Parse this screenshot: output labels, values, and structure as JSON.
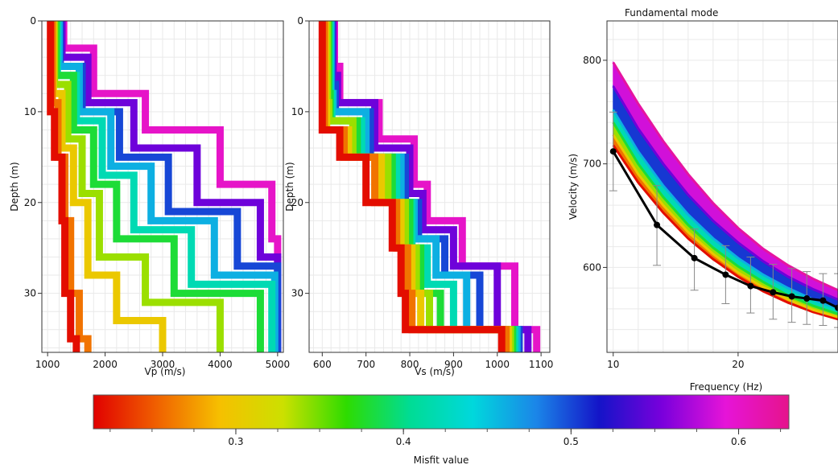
{
  "charts": {
    "vp": {
      "xlabel": "Vp (m/s)",
      "ylabel": "Depth (m)",
      "xticks": [
        1000,
        2000,
        3000,
        4000,
        5000
      ],
      "yticks": [
        0,
        10,
        20,
        30
      ],
      "xlim": [
        900,
        5100
      ],
      "ylim": [
        0,
        36.5
      ]
    },
    "vs": {
      "xlabel": "Vs (m/s)",
      "ylabel": "Depth (m)",
      "xticks": [
        600,
        700,
        800,
        900,
        1000,
        1100
      ],
      "yticks": [
        0,
        10,
        20,
        30
      ],
      "xlim": [
        570,
        1120
      ],
      "ylim": [
        0,
        36.5
      ]
    },
    "dispersion": {
      "title": "Fundamental mode",
      "xlabel": "Frequency (Hz)",
      "ylabel": "Velocity (m/s)",
      "xticks": [
        10,
        20
      ],
      "yticks": [
        600,
        700,
        800
      ],
      "xlim": [
        9.5,
        28
      ],
      "ylim": [
        518,
        838
      ]
    }
  },
  "colorbar": {
    "label": "Misfit value",
    "ticks": [
      "0.3",
      "0.4",
      "0.5",
      "0.6"
    ],
    "tick_values": [
      0.3,
      0.4,
      0.5,
      0.6
    ],
    "range": [
      0.215,
      0.63
    ],
    "colors": [
      "#e10000",
      "#f06000",
      "#f6c000",
      "#cce000",
      "#2edc00",
      "#00dc94",
      "#00d8dc",
      "#1b86e8",
      "#1414c8",
      "#7a00dc",
      "#e614d8",
      "#e6148c"
    ]
  },
  "chart_data": [
    {
      "type": "line",
      "title": "",
      "xlabel": "Vp (m/s)",
      "ylabel": "Depth (m)",
      "xlim": [
        900,
        5100
      ],
      "ylim": [
        36.5,
        0
      ],
      "note_series": "ensemble of inverted velocity profiles coloured by misfit",
      "series": [
        {
          "misfit": 0.22,
          "depth": [
            0,
            10,
            15,
            22,
            30,
            35
          ],
          "values": [
            1050,
            1120,
            1250,
            1300,
            1400,
            1500
          ]
        },
        {
          "misfit": 0.26,
          "depth": [
            0,
            9,
            15,
            22,
            30,
            35
          ],
          "values": [
            1080,
            1180,
            1300,
            1400,
            1550,
            1700
          ]
        },
        {
          "misfit": 0.3,
          "depth": [
            0,
            8,
            14,
            20,
            28,
            33
          ],
          "values": [
            1100,
            1250,
            1450,
            1700,
            2200,
            3000
          ]
        },
        {
          "misfit": 0.34,
          "depth": [
            0,
            7,
            13,
            19,
            26,
            31
          ],
          "values": [
            1120,
            1350,
            1600,
            1900,
            2700,
            4000
          ]
        },
        {
          "misfit": 0.38,
          "depth": [
            0,
            6,
            12,
            18,
            24,
            30
          ],
          "values": [
            1150,
            1450,
            1800,
            2200,
            3200,
            4700
          ]
        },
        {
          "misfit": 0.42,
          "depth": [
            0,
            6,
            11,
            17,
            23,
            29
          ],
          "values": [
            1170,
            1500,
            1950,
            2500,
            3500,
            4900
          ]
        },
        {
          "misfit": 0.46,
          "depth": [
            0,
            5,
            10,
            16,
            22,
            28
          ],
          "values": [
            1200,
            1550,
            2100,
            2800,
            3900,
            4950
          ]
        },
        {
          "misfit": 0.5,
          "depth": [
            0,
            5,
            10,
            15,
            21,
            27
          ],
          "values": [
            1220,
            1600,
            2250,
            3100,
            4300,
            5000
          ]
        },
        {
          "misfit": 0.55,
          "depth": [
            0,
            4,
            9,
            14,
            20,
            26
          ],
          "values": [
            1250,
            1700,
            2500,
            3600,
            4700,
            5000
          ]
        },
        {
          "misfit": 0.6,
          "depth": [
            0,
            3,
            8,
            12,
            18,
            24
          ],
          "values": [
            1280,
            1800,
            2700,
            4000,
            4900,
            5000
          ]
        }
      ]
    },
    {
      "type": "line",
      "title": "",
      "xlabel": "Vs (m/s)",
      "ylabel": "Depth (m)",
      "xlim": [
        570,
        1120
      ],
      "ylim": [
        36.5,
        0
      ],
      "series": [
        {
          "misfit": 0.22,
          "depth": [
            0,
            10,
            12,
            15,
            20,
            25,
            30,
            34
          ],
          "values": [
            600,
            600,
            640,
            700,
            760,
            780,
            790,
            1010
          ]
        },
        {
          "misfit": 0.26,
          "depth": [
            0,
            10,
            12,
            15,
            20,
            25,
            30,
            34
          ],
          "values": [
            605,
            605,
            650,
            720,
            770,
            795,
            805,
            1020
          ]
        },
        {
          "misfit": 0.3,
          "depth": [
            0,
            9,
            12,
            15,
            20,
            25,
            30,
            34
          ],
          "values": [
            608,
            610,
            660,
            735,
            780,
            805,
            825,
            1025
          ]
        },
        {
          "misfit": 0.34,
          "depth": [
            0,
            9,
            11,
            15,
            20,
            25,
            30,
            34
          ],
          "values": [
            612,
            615,
            670,
            750,
            790,
            815,
            845,
            1030
          ]
        },
        {
          "misfit": 0.38,
          "depth": [
            0,
            8,
            11,
            15,
            20,
            25,
            30,
            34
          ],
          "values": [
            615,
            618,
            680,
            760,
            800,
            825,
            870,
            1035
          ]
        },
        {
          "misfit": 0.42,
          "depth": [
            0,
            8,
            11,
            15,
            20,
            25,
            29,
            34
          ],
          "values": [
            618,
            622,
            690,
            770,
            805,
            840,
            900,
            1040
          ]
        },
        {
          "misfit": 0.46,
          "depth": [
            0,
            8,
            10,
            15,
            20,
            24,
            28,
            34
          ],
          "values": [
            620,
            625,
            700,
            780,
            810,
            860,
            930,
            1045
          ]
        },
        {
          "misfit": 0.5,
          "depth": [
            0,
            7,
            10,
            15,
            20,
            24,
            28,
            34
          ],
          "values": [
            622,
            630,
            710,
            790,
            820,
            880,
            960,
            1050
          ]
        },
        {
          "misfit": 0.55,
          "depth": [
            0,
            6,
            9,
            14,
            19,
            23,
            27,
            34
          ],
          "values": [
            625,
            635,
            720,
            800,
            830,
            900,
            1000,
            1070
          ]
        },
        {
          "misfit": 0.6,
          "depth": [
            0,
            5,
            9,
            13,
            18,
            22,
            27,
            34
          ],
          "values": [
            628,
            640,
            730,
            810,
            840,
            920,
            1040,
            1090
          ]
        }
      ]
    },
    {
      "type": "line",
      "title": "Fundamental mode",
      "xlabel": "Frequency (Hz)",
      "ylabel": "Velocity (m/s)",
      "xlim": [
        9.5,
        28
      ],
      "ylim": [
        518,
        838
      ],
      "band": [
        {
          "misfit": 0.22,
          "x": [
            10,
            12,
            14,
            16,
            18,
            20,
            22,
            24,
            26,
            28
          ],
          "values": [
            718,
            682,
            653,
            628,
            608,
            591,
            577,
            566,
            557,
            550
          ]
        },
        {
          "misfit": 0.3,
          "x": [
            10,
            12,
            14,
            16,
            18,
            20,
            22,
            24,
            26,
            28
          ],
          "values": [
            728,
            690,
            660,
            634,
            613,
            595,
            581,
            569,
            559,
            552
          ]
        },
        {
          "misfit": 0.38,
          "x": [
            10,
            12,
            14,
            16,
            18,
            20,
            22,
            24,
            26,
            28
          ],
          "values": [
            740,
            700,
            668,
            641,
            619,
            601,
            586,
            573,
            563,
            555
          ]
        },
        {
          "misfit": 0.46,
          "x": [
            10,
            12,
            14,
            16,
            18,
            20,
            22,
            24,
            26,
            28
          ],
          "values": [
            752,
            712,
            679,
            651,
            628,
            609,
            593,
            580,
            569,
            560
          ]
        },
        {
          "misfit": 0.55,
          "x": [
            10,
            12,
            14,
            16,
            18,
            20,
            22,
            24,
            26,
            28
          ],
          "values": [
            775,
            734,
            700,
            670,
            645,
            624,
            606,
            591,
            579,
            569
          ]
        },
        {
          "misfit": 0.62,
          "x": [
            10,
            12,
            14,
            16,
            18,
            20,
            22,
            24,
            26,
            28
          ],
          "values": [
            798,
            758,
            722,
            690,
            662,
            638,
            618,
            602,
            589,
            578
          ]
        }
      ],
      "observed": {
        "x": [
          10,
          13.5,
          16.5,
          19,
          21,
          22.8,
          24.3,
          25.5,
          26.8,
          28
        ],
        "values": [
          712,
          641,
          609,
          593,
          582,
          576,
          572,
          570,
          568,
          561
        ],
        "err_low": [
          674,
          602,
          578,
          565,
          556,
          550,
          547,
          545,
          544,
          542
        ],
        "err_high": [
          750,
          679,
          637,
          621,
          610,
          603,
          599,
          596,
          594,
          594
        ]
      }
    }
  ]
}
